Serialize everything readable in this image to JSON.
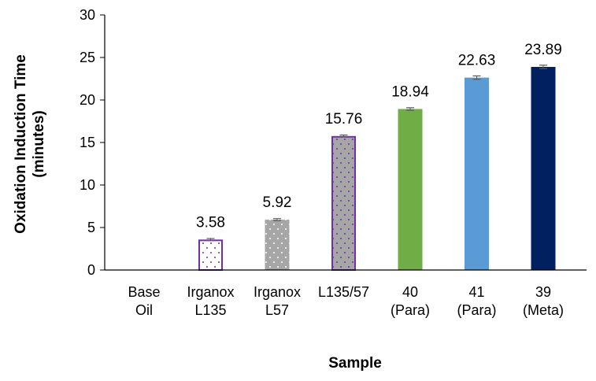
{
  "chart_data": {
    "type": "bar",
    "title": "",
    "xlabel": "Sample",
    "ylabel_lines": [
      "Oxidation Induction Time",
      "(minutes)"
    ],
    "ylim": [
      0,
      30
    ],
    "yticks": [
      0,
      5,
      10,
      15,
      20,
      25,
      30
    ],
    "grid": false,
    "categories": [
      [
        "Base",
        "Oil"
      ],
      [
        "Irganox",
        "L135"
      ],
      [
        "Irganox",
        "L57"
      ],
      [
        "L135/57"
      ],
      [
        "40",
        "(Para)"
      ],
      [
        "41",
        "(Para)"
      ],
      [
        "39",
        "(Meta)"
      ]
    ],
    "values": [
      0,
      3.58,
      5.92,
      15.76,
      18.94,
      22.63,
      23.89
    ],
    "data_labels": [
      "",
      "3.58",
      "5.92",
      "15.76",
      "18.94",
      "22.63",
      "23.89"
    ],
    "error": [
      0.0,
      0.12,
      0.12,
      0.12,
      0.15,
      0.2,
      0.2
    ],
    "bar_styles": [
      {
        "fill": "#ffffff",
        "stroke": "#7030a0",
        "pattern": "none"
      },
      {
        "fill": "#ffffff",
        "stroke": "#7030a0",
        "pattern": "dots-purple-on-white"
      },
      {
        "fill": "#a6a6a6",
        "stroke": "#a6a6a6",
        "pattern": "dots-white-on-gray"
      },
      {
        "fill": "#a6a6a6",
        "stroke": "#7030a0",
        "pattern": "dots-purple-on-gray"
      },
      {
        "fill": "#70ad47",
        "stroke": "#70ad47",
        "pattern": "none"
      },
      {
        "fill": "#5b9bd5",
        "stroke": "#5b9bd5",
        "pattern": "none"
      },
      {
        "fill": "#002060",
        "stroke": "#002060",
        "pattern": "none"
      }
    ]
  }
}
